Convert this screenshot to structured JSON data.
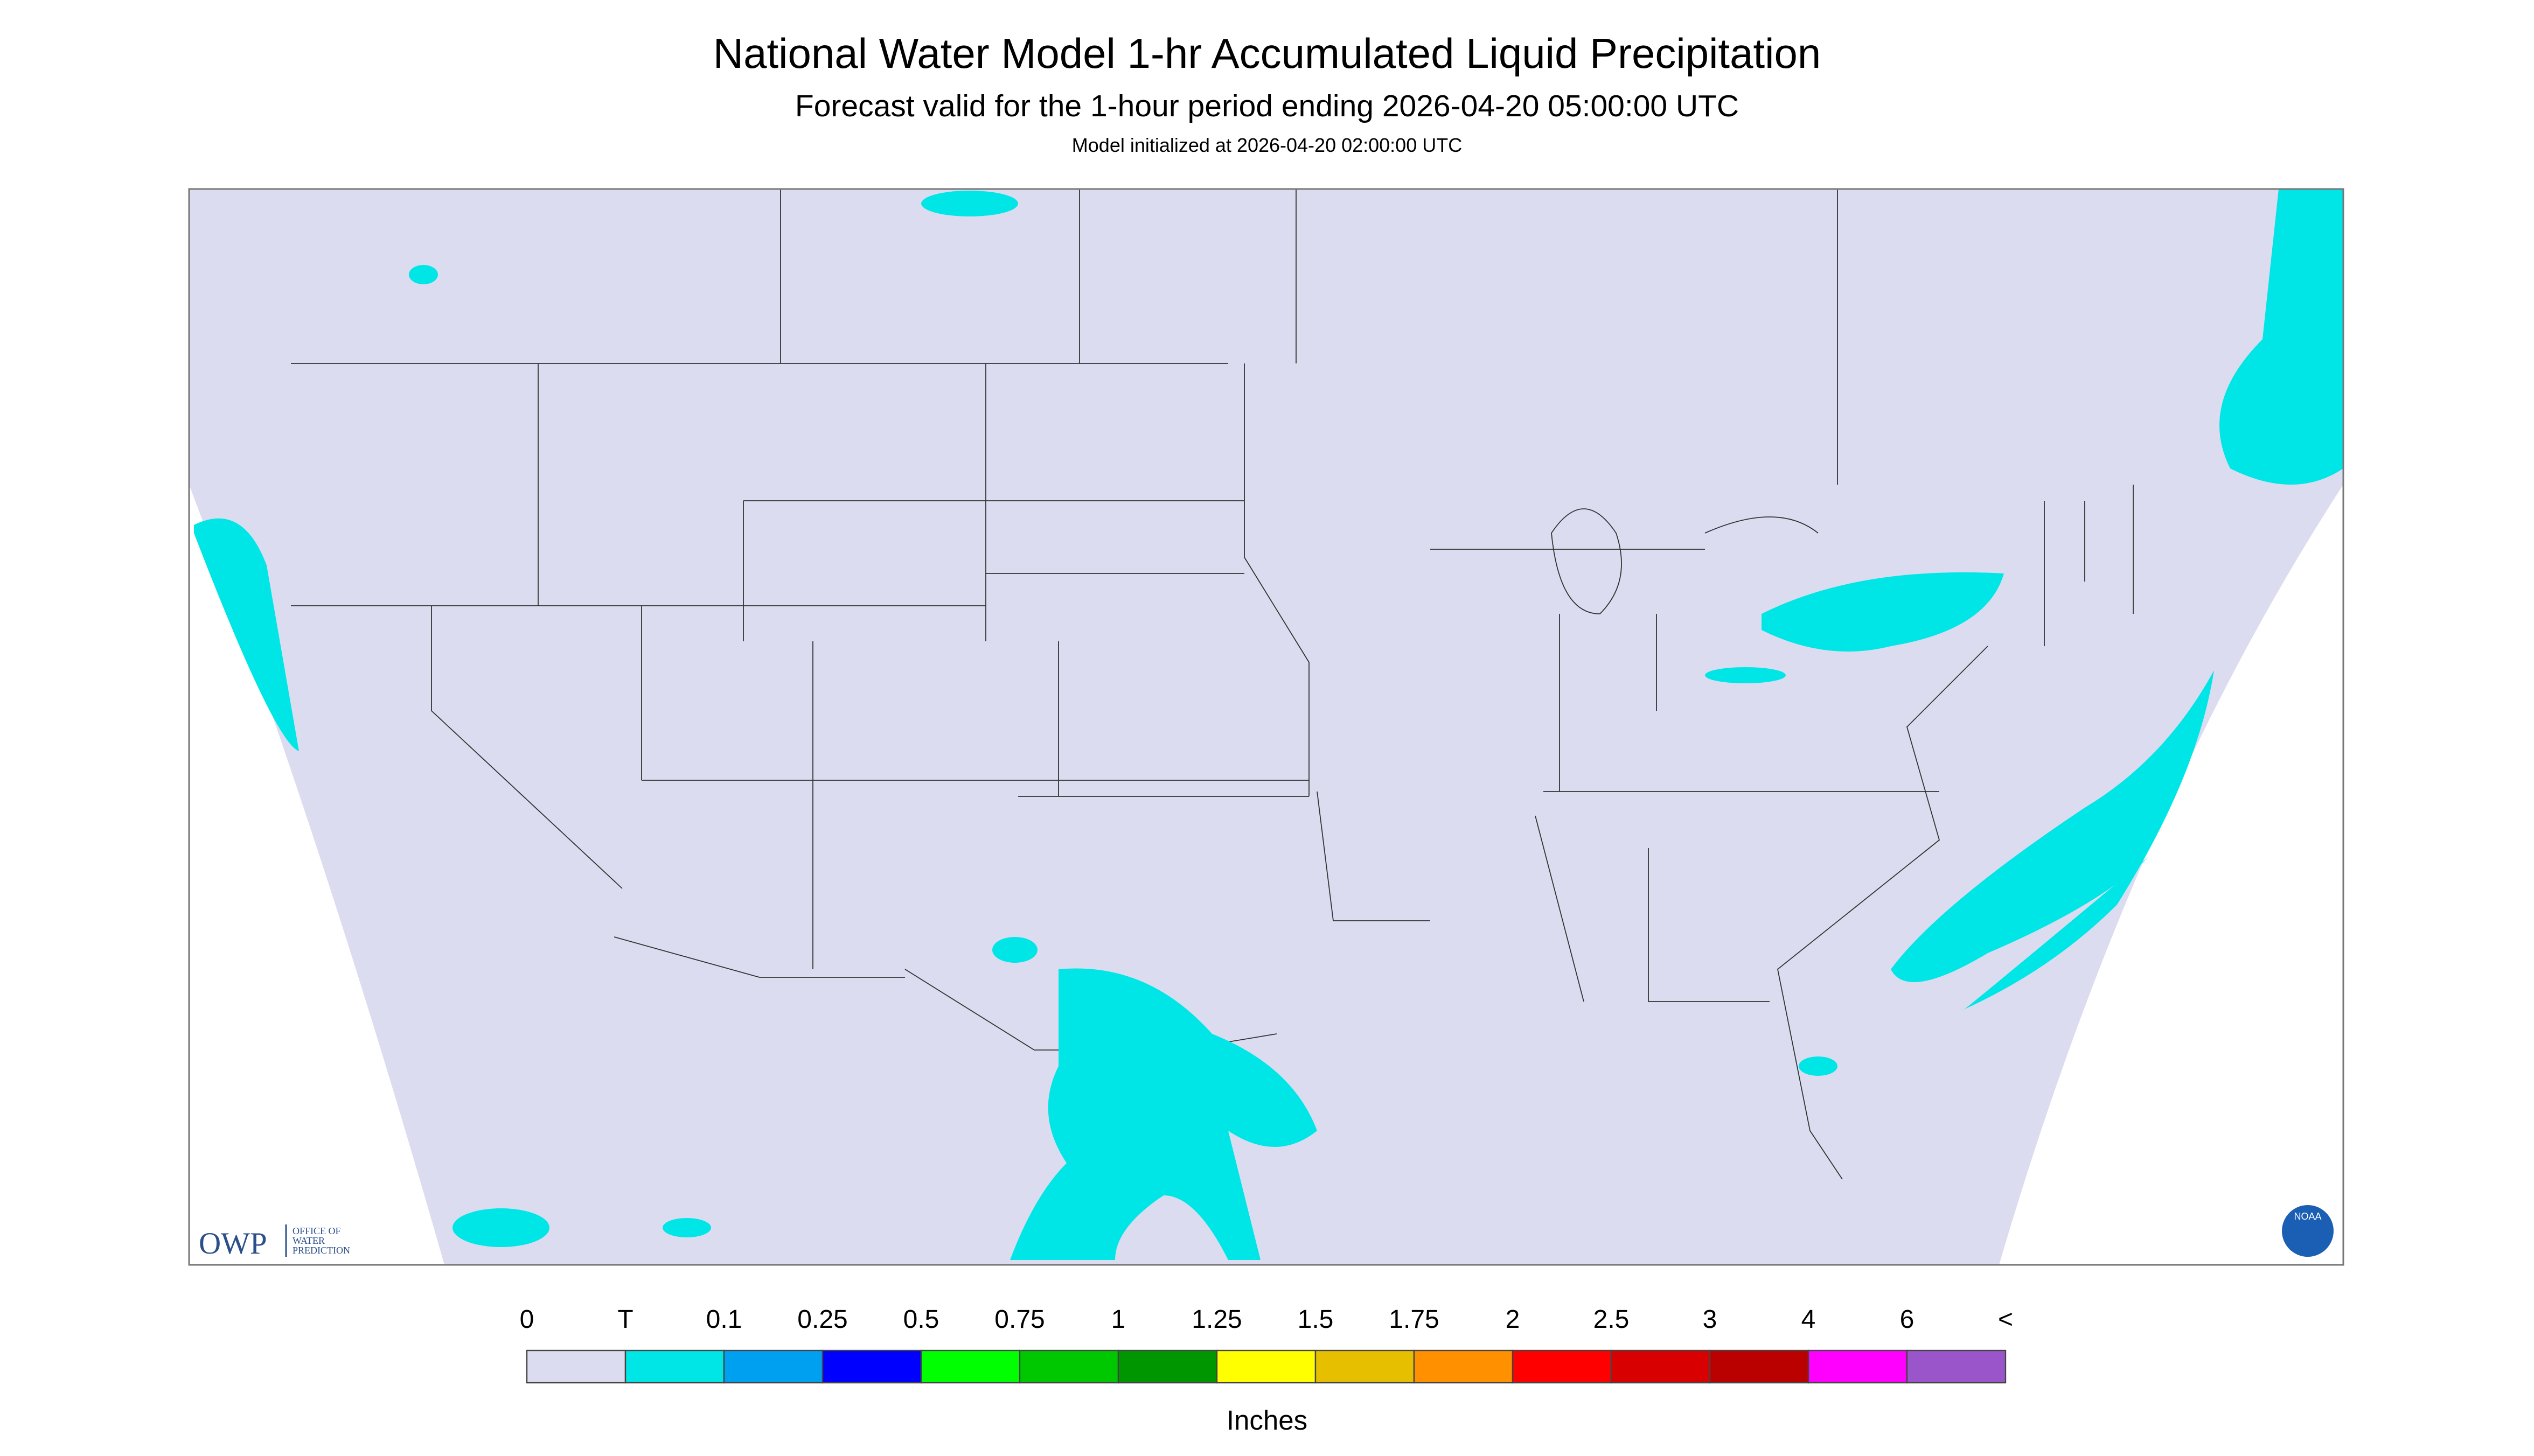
{
  "header": {
    "title": "National Water Model 1-hr Accumulated Liquid Precipitation",
    "subtitle": "Forecast valid for the 1-hour period ending 2026-04-20 05:00:00 UTC",
    "note": "Model initialized at 2026-04-20 02:00:00 UTC"
  },
  "logos": {
    "owp": "OWP",
    "owp_lines": [
      "OFFICE OF",
      "WATER",
      "PREDICTION"
    ],
    "noaa": "NOAA"
  },
  "legend": {
    "labels": [
      "0",
      "T",
      "0.1",
      "0.25",
      "0.5",
      "0.75",
      "1",
      "1.25",
      "1.5",
      "1.75",
      "2",
      "2.5",
      "3",
      "4",
      "6",
      "<"
    ],
    "colors": [
      "#dcdcf0",
      "#00e6e6",
      "#00a0f0",
      "#0000ff",
      "#00ff00",
      "#00c800",
      "#009600",
      "#ffff00",
      "#e6c000",
      "#ff9100",
      "#ff0000",
      "#d80000",
      "#bb0000",
      "#ff00ff",
      "#9955c9"
    ],
    "unit": "Inches"
  }
}
